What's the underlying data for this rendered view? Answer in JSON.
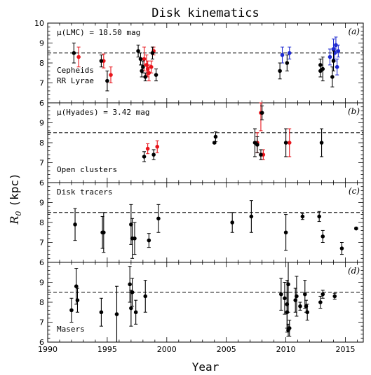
{
  "chart_data": {
    "type": "scatter",
    "title": "Disk kinematics",
    "xlabel": "Year",
    "ylabel_main": "R",
    "ylabel_sub": "0",
    "ylabel_unit": "(kpc)",
    "xlim": [
      1990,
      2016.5
    ],
    "xticks": [
      "1990",
      "1995",
      "2000",
      "2005",
      "2010",
      "2015"
    ],
    "ylim": [
      6,
      10
    ],
    "reference_line": 8.5,
    "grid": false,
    "colors": {
      "black": "#000000",
      "red": "#e8141b",
      "blue": "#1f2bd1"
    },
    "panels": [
      {
        "label": "(a)",
        "yticks": [
          "6",
          "7",
          "8",
          "9",
          "10"
        ],
        "annotations": [
          {
            "text": "μ(LMC) = 18.50 mag",
            "color": "black",
            "pos": "top-left"
          },
          {
            "text": "Cepheids",
            "color": "red",
            "pos": "lower-left-1"
          },
          {
            "text": "RR Lyrae",
            "color": "blue",
            "pos": "lower-left-2"
          }
        ],
        "series": [
          {
            "name": "Cepheids",
            "color": "red",
            "points": [
              [
                1992.6,
                8.3,
                0.5,
                0.5
              ],
              [
                1994.7,
                8.1,
                0.35,
                0.35
              ],
              [
                1995.3,
                7.4,
                0.4,
                0.4
              ],
              [
                1998.1,
                8.2,
                0.6,
                0.6
              ],
              [
                1998.3,
                7.9,
                0.5,
                0.5
              ],
              [
                1998.4,
                7.7,
                0.4,
                0.4
              ],
              [
                1998.5,
                7.5,
                0.4,
                0.4
              ],
              [
                1998.9,
                8.6,
                0.2,
                0.2
              ],
              [
                1998.7,
                7.8,
                0.3,
                0.3
              ]
            ]
          },
          {
            "name": "RR Lyrae",
            "color": "blue",
            "points": [
              [
                2009.7,
                8.4,
                0.4,
                0.4
              ],
              [
                2010.3,
                8.5,
                0.3,
                0.3
              ],
              [
                2013.7,
                8.3,
                0.4,
                0.4
              ],
              [
                2014.0,
                8.7,
                0.5,
                0.5
              ],
              [
                2014.1,
                8.5,
                0.4,
                0.4
              ],
              [
                2014.2,
                8.9,
                0.4,
                0.4
              ],
              [
                2014.3,
                7.8,
                0.4,
                0.4
              ],
              [
                2014.4,
                8.6,
                0.3,
                0.3
              ]
            ]
          },
          {
            "name": "other",
            "color": "black",
            "points": [
              [
                1992.2,
                8.5,
                0.5,
                0.5
              ],
              [
                1994.5,
                8.1,
                0.3,
                0.3
              ],
              [
                1995.0,
                7.1,
                0.5,
                0.5
              ],
              [
                1997.6,
                8.6,
                0.3,
                0.3
              ],
              [
                1997.8,
                8.2,
                0.3,
                0.3
              ],
              [
                1997.9,
                7.6,
                0.3,
                0.3
              ],
              [
                1998.0,
                7.8,
                0.3,
                0.3
              ],
              [
                1998.2,
                7.3,
                0.2,
                0.2
              ],
              [
                1998.8,
                8.5,
                0.3,
                0.3
              ],
              [
                1999.1,
                7.4,
                0.3,
                0.3
              ],
              [
                2009.5,
                7.6,
                0.4,
                0.4
              ],
              [
                2010.1,
                8.0,
                0.4,
                0.4
              ],
              [
                2012.9,
                7.9,
                0.3,
                0.3
              ],
              [
                2012.9,
                7.6,
                0.3,
                0.3
              ],
              [
                2013.1,
                7.7,
                0.6,
                0.6
              ],
              [
                2013.9,
                7.3,
                0.5,
                0.5
              ],
              [
                2014.0,
                8.1,
                0.5,
                0.5
              ]
            ]
          }
        ]
      },
      {
        "label": "(b)",
        "yticks": [
          "6",
          "7",
          "8",
          "9"
        ],
        "annotations": [
          {
            "text": "μ(Hyades) = 3.42 mag",
            "color": "black",
            "pos": "top-left"
          },
          {
            "text": "Open clusters",
            "color": "black",
            "pos": "bottom-left"
          }
        ],
        "series": [
          {
            "name": "red",
            "color": "red",
            "points": [
              [
                1998.4,
                7.7,
                0.25,
                0.25
              ],
              [
                1999.2,
                7.8,
                0.3,
                0.3
              ],
              [
                2007.6,
                8.0,
                0.5,
                0.5
              ],
              [
                2007.9,
                9.5,
                0.9,
                0.9
              ],
              [
                2008.1,
                7.4,
                0.25,
                0.25
              ],
              [
                2010.3,
                8.0,
                0.7,
                0.7
              ]
            ]
          },
          {
            "name": "black",
            "color": "black",
            "points": [
              [
                1998.1,
                7.3,
                0.25,
                0.25
              ],
              [
                1998.9,
                7.4,
                0.25,
                0.25
              ],
              [
                2004.1,
                8.3,
                0.25,
                0.25
              ],
              [
                2004.0,
                8.0,
                0.05,
                0.05
              ],
              [
                2007.4,
                8.0,
                0.7,
                0.7
              ],
              [
                2007.6,
                7.9,
                0.4,
                0.4
              ],
              [
                2007.9,
                7.4,
                0.25,
                0.25
              ],
              [
                2008.0,
                9.5,
                0.35,
                0.35
              ],
              [
                2010.0,
                8.0,
                0.7,
                0.7
              ],
              [
                2013.0,
                8.0,
                0.7,
                0.7
              ]
            ]
          }
        ]
      },
      {
        "label": "(c)",
        "yticks": [
          "6",
          "7",
          "8",
          "9"
        ],
        "annotations": [
          {
            "text": "Disk tracers",
            "color": "black",
            "pos": "top-left"
          }
        ],
        "series": [
          {
            "name": "black",
            "color": "black",
            "points": [
              [
                1992.3,
                7.9,
                0.8,
                0.8
              ],
              [
                1994.6,
                7.5,
                0.8,
                0.8
              ],
              [
                1994.7,
                7.5,
                1.0,
                1.0
              ],
              [
                1997.0,
                7.9,
                1.0,
                1.0
              ],
              [
                1997.1,
                7.2,
                1.0,
                1.0
              ],
              [
                1997.3,
                7.2,
                0.8,
                0.8
              ],
              [
                1998.5,
                7.1,
                0.35,
                0.35
              ],
              [
                1999.3,
                8.2,
                0.7,
                0.7
              ],
              [
                2005.5,
                8.0,
                0.5,
                0.5
              ],
              [
                2007.1,
                8.3,
                0.8,
                0.8
              ],
              [
                2010.0,
                7.5,
                0.9,
                0.9
              ],
              [
                2011.4,
                8.3,
                0.15,
                0.15
              ],
              [
                2012.8,
                8.3,
                0.25,
                0.25
              ],
              [
                2013.1,
                7.3,
                0.3,
                0.3
              ],
              [
                2014.7,
                6.7,
                0.3,
                0.3
              ],
              [
                2015.9,
                7.7,
                0.05,
                0.05
              ]
            ]
          }
        ]
      },
      {
        "label": "(d)",
        "yticks": [
          "6",
          "7",
          "8",
          "9"
        ],
        "annotations": [
          {
            "text": "Masers",
            "color": "black",
            "pos": "bottom-left"
          }
        ],
        "series": [
          {
            "name": "black",
            "color": "black",
            "points": [
              [
                1992.0,
                7.6,
                0.6,
                0.6
              ],
              [
                1992.4,
                8.8,
                0.9,
                0.9
              ],
              [
                1992.5,
                8.1,
                0.6,
                0.6
              ],
              [
                1994.5,
                7.5,
                0.7,
                0.7
              ],
              [
                1995.8,
                7.4,
                1.4,
                1.4
              ],
              [
                1996.9,
                8.9,
                0.9,
                0.9
              ],
              [
                1997.0,
                7.7,
                0.9,
                0.9
              ],
              [
                1997.1,
                8.5,
                0.7,
                0.7
              ],
              [
                1997.4,
                7.5,
                0.6,
                0.6
              ],
              [
                1998.2,
                8.3,
                0.8,
                0.8
              ],
              [
                2009.6,
                8.4,
                0.8,
                0.8
              ],
              [
                2009.9,
                8.2,
                0.8,
                0.8
              ],
              [
                2010.1,
                7.5,
                1.0,
                1.0
              ],
              [
                2010.1,
                7.9,
                1.2,
                1.2
              ],
              [
                2010.2,
                8.9,
                1.4,
                1.4
              ],
              [
                2010.3,
                6.7,
                0.4,
                0.4
              ],
              [
                2010.2,
                6.6,
                0.3,
                0.3
              ],
              [
                2010.8,
                8.1,
                0.6,
                0.6
              ],
              [
                2010.9,
                8.3,
                1.0,
                1.0
              ],
              [
                2011.2,
                7.8,
                0.2,
                0.2
              ],
              [
                2011.6,
                8.4,
                0.7,
                0.7
              ],
              [
                2011.7,
                7.8,
                0.3,
                0.3
              ],
              [
                2011.8,
                7.5,
                0.4,
                0.4
              ],
              [
                2012.9,
                8.0,
                0.3,
                0.3
              ],
              [
                2013.1,
                8.4,
                0.2,
                0.2
              ],
              [
                2014.1,
                8.3,
                0.15,
                0.15
              ]
            ]
          }
        ]
      }
    ]
  }
}
